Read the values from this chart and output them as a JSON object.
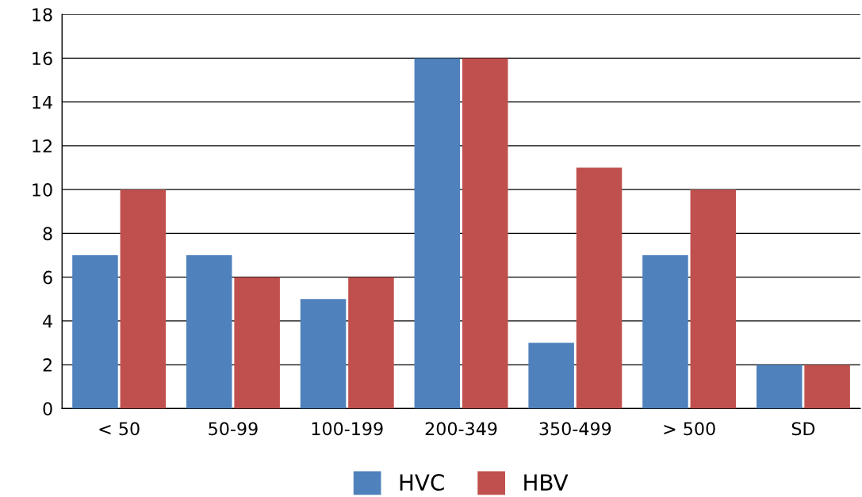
{
  "chart_data": {
    "type": "bar",
    "categories": [
      "< 50",
      "50-99",
      "100-199",
      "200-349",
      "350-499",
      "> 500",
      "SD"
    ],
    "series": [
      {
        "name": "HVC",
        "color": "#4f81bd",
        "values": [
          7,
          7,
          5,
          16,
          3,
          7,
          2
        ]
      },
      {
        "name": "HBV",
        "color": "#c0504d",
        "values": [
          10,
          6,
          6,
          16,
          11,
          10,
          2
        ]
      }
    ],
    "ylim": [
      0,
      18
    ],
    "yticks": [
      0,
      2,
      4,
      6,
      8,
      10,
      12,
      14,
      16,
      18
    ],
    "grid": "y",
    "legend": "bottom"
  }
}
